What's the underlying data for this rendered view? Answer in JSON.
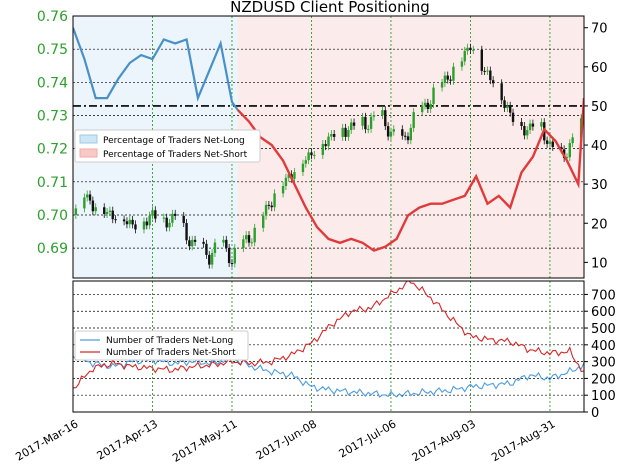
{
  "chart_data": [
    {
      "type": "line",
      "title": "NZDUSD Client Positioning",
      "description_price": "NZDUSD daily candlesticks (green up / black down) on left axis",
      "left_axis_ticks": [
        "0.69",
        "0.70",
        "0.71",
        "0.72",
        "0.73",
        "0.74",
        "0.75",
        "0.76"
      ],
      "right_axis_ticks": [
        "10",
        "20",
        "30",
        "40",
        "50",
        "60",
        "70"
      ],
      "ylim_left": [
        0.681,
        0.76
      ],
      "ylim_right": [
        6,
        73
      ],
      "grid": true,
      "legend_position": "center-left",
      "legend": [
        {
          "label": "Percentage of Traders Net-Long",
          "color": "#9ecae1"
        },
        {
          "label": "Percentage of Traders Net-Short",
          "color": "#f4a9a8"
        }
      ],
      "reference_level": 50,
      "net_long_pct": {
        "x": [
          "2017-03-16",
          "2017-03-20",
          "2017-03-24",
          "2017-03-28",
          "2017-04-01",
          "2017-04-05",
          "2017-04-09",
          "2017-04-13",
          "2017-04-17",
          "2017-04-21",
          "2017-04-25",
          "2017-04-29",
          "2017-05-03",
          "2017-05-07",
          "2017-05-11",
          "2017-05-13"
        ],
        "values": [
          70,
          62,
          52,
          52,
          57,
          61,
          63,
          62,
          67,
          66,
          67,
          52,
          59,
          66,
          51,
          49
        ]
      },
      "net_short_pct": {
        "x": [
          "2017-05-13",
          "2017-05-17",
          "2017-05-21",
          "2017-05-25",
          "2017-05-29",
          "2017-06-02",
          "2017-06-06",
          "2017-06-10",
          "2017-06-14",
          "2017-06-18",
          "2017-06-22",
          "2017-06-26",
          "2017-06-30",
          "2017-07-04",
          "2017-07-08",
          "2017-07-12",
          "2017-07-16",
          "2017-07-20",
          "2017-07-24",
          "2017-07-28",
          "2017-08-01",
          "2017-08-05",
          "2017-08-09",
          "2017-08-13",
          "2017-08-17",
          "2017-08-21",
          "2017-08-25",
          "2017-08-29",
          "2017-09-02",
          "2017-09-06",
          "2017-09-10",
          "2017-09-12"
        ],
        "values": [
          49,
          46,
          42,
          40,
          36,
          30,
          24,
          19,
          16,
          15,
          16,
          15,
          13,
          14,
          16,
          22,
          24,
          25,
          25,
          26,
          27,
          32,
          25,
          27,
          24,
          33,
          37,
          44,
          41,
          36,
          30,
          52
        ]
      },
      "price": {
        "x": [
          "2017-03-16",
          "2017-03-20",
          "2017-03-24",
          "2017-03-28",
          "2017-04-01",
          "2017-04-05",
          "2017-04-09",
          "2017-04-13",
          "2017-04-17",
          "2017-04-21",
          "2017-04-25",
          "2017-04-29",
          "2017-05-03",
          "2017-05-07",
          "2017-05-11",
          "2017-05-15",
          "2017-05-19",
          "2017-05-23",
          "2017-05-27",
          "2017-05-31",
          "2017-06-04",
          "2017-06-08",
          "2017-06-12",
          "2017-06-16",
          "2017-06-20",
          "2017-06-24",
          "2017-06-28",
          "2017-07-02",
          "2017-07-06",
          "2017-07-10",
          "2017-07-14",
          "2017-07-18",
          "2017-07-22",
          "2017-07-26",
          "2017-07-30",
          "2017-08-03",
          "2017-08-07",
          "2017-08-11",
          "2017-08-15",
          "2017-08-19",
          "2017-08-23",
          "2017-08-27",
          "2017-08-31",
          "2017-09-04",
          "2017-09-08",
          "2017-09-12"
        ],
        "values": [
          0.7,
          0.706,
          0.703,
          0.701,
          0.7,
          0.698,
          0.697,
          0.701,
          0.698,
          0.7,
          0.694,
          0.69,
          0.688,
          0.692,
          0.687,
          0.692,
          0.695,
          0.702,
          0.708,
          0.712,
          0.716,
          0.719,
          0.722,
          0.725,
          0.726,
          0.728,
          0.728,
          0.731,
          0.725,
          0.722,
          0.729,
          0.733,
          0.738,
          0.742,
          0.746,
          0.752,
          0.745,
          0.741,
          0.734,
          0.728,
          0.726,
          0.729,
          0.721,
          0.718,
          0.722,
          0.729
        ]
      }
    },
    {
      "type": "line",
      "right_axis_ticks": [
        "0",
        "100",
        "200",
        "300",
        "400",
        "500",
        "600",
        "700"
      ],
      "ylim": [
        0,
        780
      ],
      "grid": true,
      "legend_position": "left",
      "legend": [
        {
          "label": "Number of Traders Net-Long",
          "color": "#4d9de0"
        },
        {
          "label": "Number of Traders Net-Short",
          "color": "#d62728"
        }
      ],
      "x_tick_labels": [
        "2017-Mar-16",
        "2017-Apr-13",
        "2017-May-11",
        "2017-Jun-08",
        "2017-Jul-06",
        "2017-Aug-03",
        "2017-Aug-31"
      ],
      "series": [
        {
          "name": "Number of Traders Net-Long",
          "x": [
            "2017-03-16",
            "2017-03-23",
            "2017-03-30",
            "2017-04-06",
            "2017-04-13",
            "2017-04-20",
            "2017-04-27",
            "2017-05-04",
            "2017-05-11",
            "2017-05-18",
            "2017-05-25",
            "2017-06-01",
            "2017-06-08",
            "2017-06-15",
            "2017-06-22",
            "2017-06-29",
            "2017-07-06",
            "2017-07-13",
            "2017-07-20",
            "2017-07-27",
            "2017-08-03",
            "2017-08-10",
            "2017-08-17",
            "2017-08-24",
            "2017-08-31",
            "2017-09-07",
            "2017-09-12"
          ],
          "values": [
            330,
            290,
            270,
            300,
            310,
            290,
            300,
            290,
            320,
            270,
            240,
            220,
            150,
            130,
            120,
            110,
            100,
            110,
            120,
            130,
            150,
            160,
            170,
            220,
            200,
            240,
            280
          ]
        },
        {
          "name": "Number of Traders Net-Short",
          "x": [
            "2017-03-16",
            "2017-03-23",
            "2017-03-30",
            "2017-04-06",
            "2017-04-13",
            "2017-04-20",
            "2017-04-27",
            "2017-05-04",
            "2017-05-11",
            "2017-05-18",
            "2017-05-25",
            "2017-06-01",
            "2017-06-08",
            "2017-06-15",
            "2017-06-22",
            "2017-06-29",
            "2017-07-06",
            "2017-07-13",
            "2017-07-20",
            "2017-07-27",
            "2017-08-03",
            "2017-08-10",
            "2017-08-17",
            "2017-08-24",
            "2017-08-31",
            "2017-09-07",
            "2017-09-12"
          ],
          "values": [
            140,
            260,
            290,
            270,
            260,
            250,
            270,
            280,
            300,
            290,
            300,
            340,
            410,
            520,
            600,
            620,
            700,
            780,
            680,
            560,
            450,
            430,
            420,
            370,
            350,
            360,
            230
          ]
        }
      ]
    }
  ]
}
